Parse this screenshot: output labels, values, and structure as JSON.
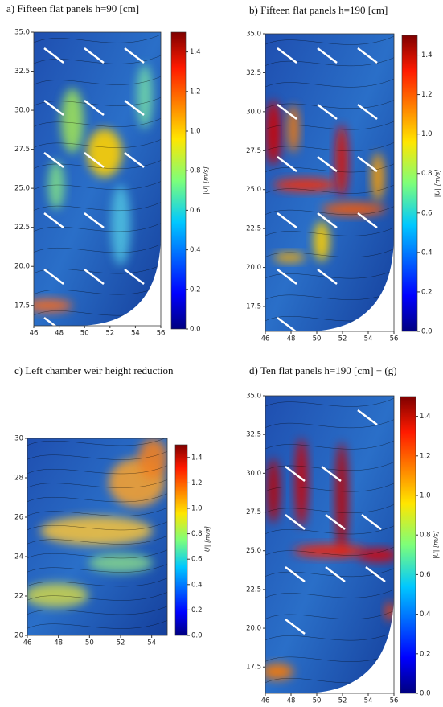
{
  "chart_data": [
    {
      "type": "heatmap",
      "title": "a) Fifteen flat panels h=90 [cm]",
      "xlim": [
        46,
        56
      ],
      "xticks": [
        46,
        48,
        50,
        52,
        54,
        56
      ],
      "ylim": [
        16.2,
        35
      ],
      "yticks": [
        {
          "value": 17.5,
          "label": "17.5"
        },
        {
          "value": 20,
          "label": "20.0"
        },
        {
          "value": 22.5,
          "label": "22.5"
        },
        {
          "value": 25,
          "label": "25.0"
        },
        {
          "value": 27.5,
          "label": "27.5"
        },
        {
          "value": 30,
          "label": "30.0"
        },
        {
          "value": 32.5,
          "label": "32.5"
        },
        {
          "value": 35,
          "label": "35.0"
        }
      ],
      "colorbar": {
        "label": "|U| [m/s]",
        "lim": [
          0,
          1.5
        ],
        "ticks": [
          {
            "value": 0,
            "label": "0.0"
          },
          0.2,
          0.4,
          0.6,
          0.8,
          {
            "value": 1,
            "label": "1.0"
          },
          1.2,
          1.4
        ]
      }
    },
    {
      "type": "heatmap",
      "title": "b) Fifteen flat panels h=190 [cm]",
      "xlim": [
        46,
        56
      ],
      "xticks": [
        46,
        48,
        50,
        52,
        54,
        56
      ],
      "ylim": [
        15.9,
        35
      ],
      "yticks": [
        {
          "value": 17.5,
          "label": "17.5"
        },
        {
          "value": 20,
          "label": "20.0"
        },
        {
          "value": 22.5,
          "label": "22.5"
        },
        {
          "value": 25,
          "label": "25.0"
        },
        {
          "value": 27.5,
          "label": "27.5"
        },
        {
          "value": 30,
          "label": "30.0"
        },
        {
          "value": 32.5,
          "label": "32.5"
        },
        {
          "value": 35,
          "label": "35.0"
        }
      ],
      "colorbar": {
        "label": "|U| [m/s]",
        "lim": [
          0,
          1.5
        ],
        "ticks": [
          {
            "value": 0,
            "label": "0.0"
          },
          0.2,
          0.4,
          0.6,
          0.8,
          {
            "value": 1,
            "label": "1.0"
          },
          1.2,
          1.4
        ]
      }
    },
    {
      "type": "heatmap",
      "title": "c) Left chamber weir height reduction",
      "xlim": [
        46,
        55
      ],
      "xticks": [
        46,
        48,
        50,
        52,
        54
      ],
      "ylim": [
        20,
        30
      ],
      "yticks": [
        20,
        22,
        24,
        26,
        28,
        30
      ],
      "colorbar": {
        "label": "|U| [m/s]",
        "lim": [
          0,
          1.5
        ],
        "ticks": [
          {
            "value": 0,
            "label": "0.0"
          },
          0.2,
          0.4,
          0.6,
          0.8,
          {
            "value": 1,
            "label": "1.0"
          },
          1.2,
          1.4
        ]
      }
    },
    {
      "type": "heatmap",
      "title": "d) Ten flat panels h=190 [cm] + (g)",
      "xlim": [
        46,
        56
      ],
      "xticks": [
        46,
        48,
        50,
        52,
        54,
        56
      ],
      "ylim": [
        15.8,
        35
      ],
      "yticks": [
        {
          "value": 17.5,
          "label": "17.5"
        },
        {
          "value": 20,
          "label": "20.0"
        },
        {
          "value": 22.5,
          "label": "22.5"
        },
        {
          "value": 25,
          "label": "25.0"
        },
        {
          "value": 27.5,
          "label": "27.5"
        },
        {
          "value": 30,
          "label": "30.0"
        },
        {
          "value": 32.5,
          "label": "32.5"
        },
        {
          "value": 35,
          "label": "35.0"
        }
      ],
      "colorbar": {
        "label": "|U| [m/s]",
        "lim": [
          0,
          1.5
        ],
        "ticks": [
          {
            "value": 0,
            "label": "0.0"
          },
          0.2,
          0.4,
          0.6,
          0.8,
          {
            "value": 1,
            "label": "1.0"
          },
          1.2,
          1.4
        ]
      }
    }
  ]
}
